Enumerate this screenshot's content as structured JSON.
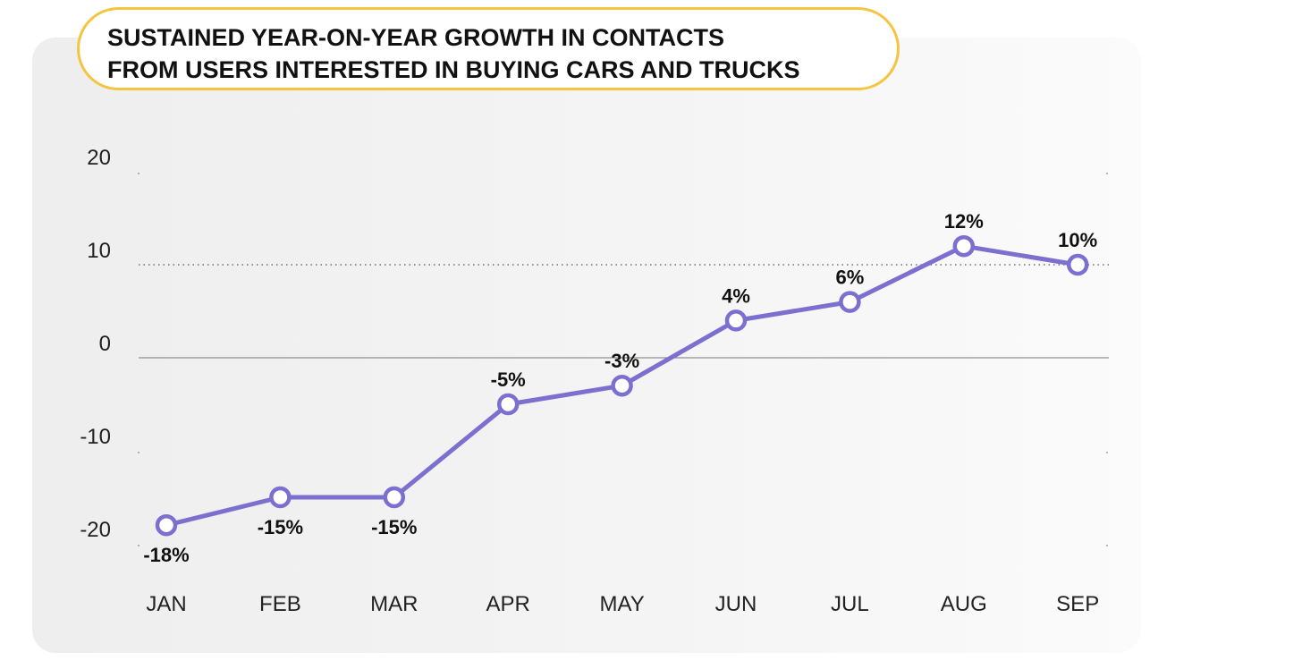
{
  "chart_data": {
    "type": "line",
    "title_lines": [
      "SUSTAINED YEAR-ON-YEAR GROWTH IN CONTACTS",
      "FROM USERS INTERESTED IN BUYING CARS AND TRUCKS"
    ],
    "categories": [
      "JAN",
      "FEB",
      "MAR",
      "APR",
      "MAY",
      "JUN",
      "JUL",
      "AUG",
      "SEP"
    ],
    "values": [
      -18,
      -15,
      -15,
      -5,
      -3,
      4,
      6,
      12,
      10
    ],
    "data_labels": [
      "-18%",
      "-15%",
      "-15%",
      "-5%",
      "-3%",
      "4%",
      "6%",
      "12%",
      "10%"
    ],
    "y_ticks": [
      20,
      10,
      0,
      -10,
      -20
    ],
    "ylim": [
      -20,
      20
    ],
    "grid": "dotted at 10, solid zero line",
    "legend": "none",
    "series_color": "#7b6fd0",
    "accent_color": "#f5c542"
  }
}
